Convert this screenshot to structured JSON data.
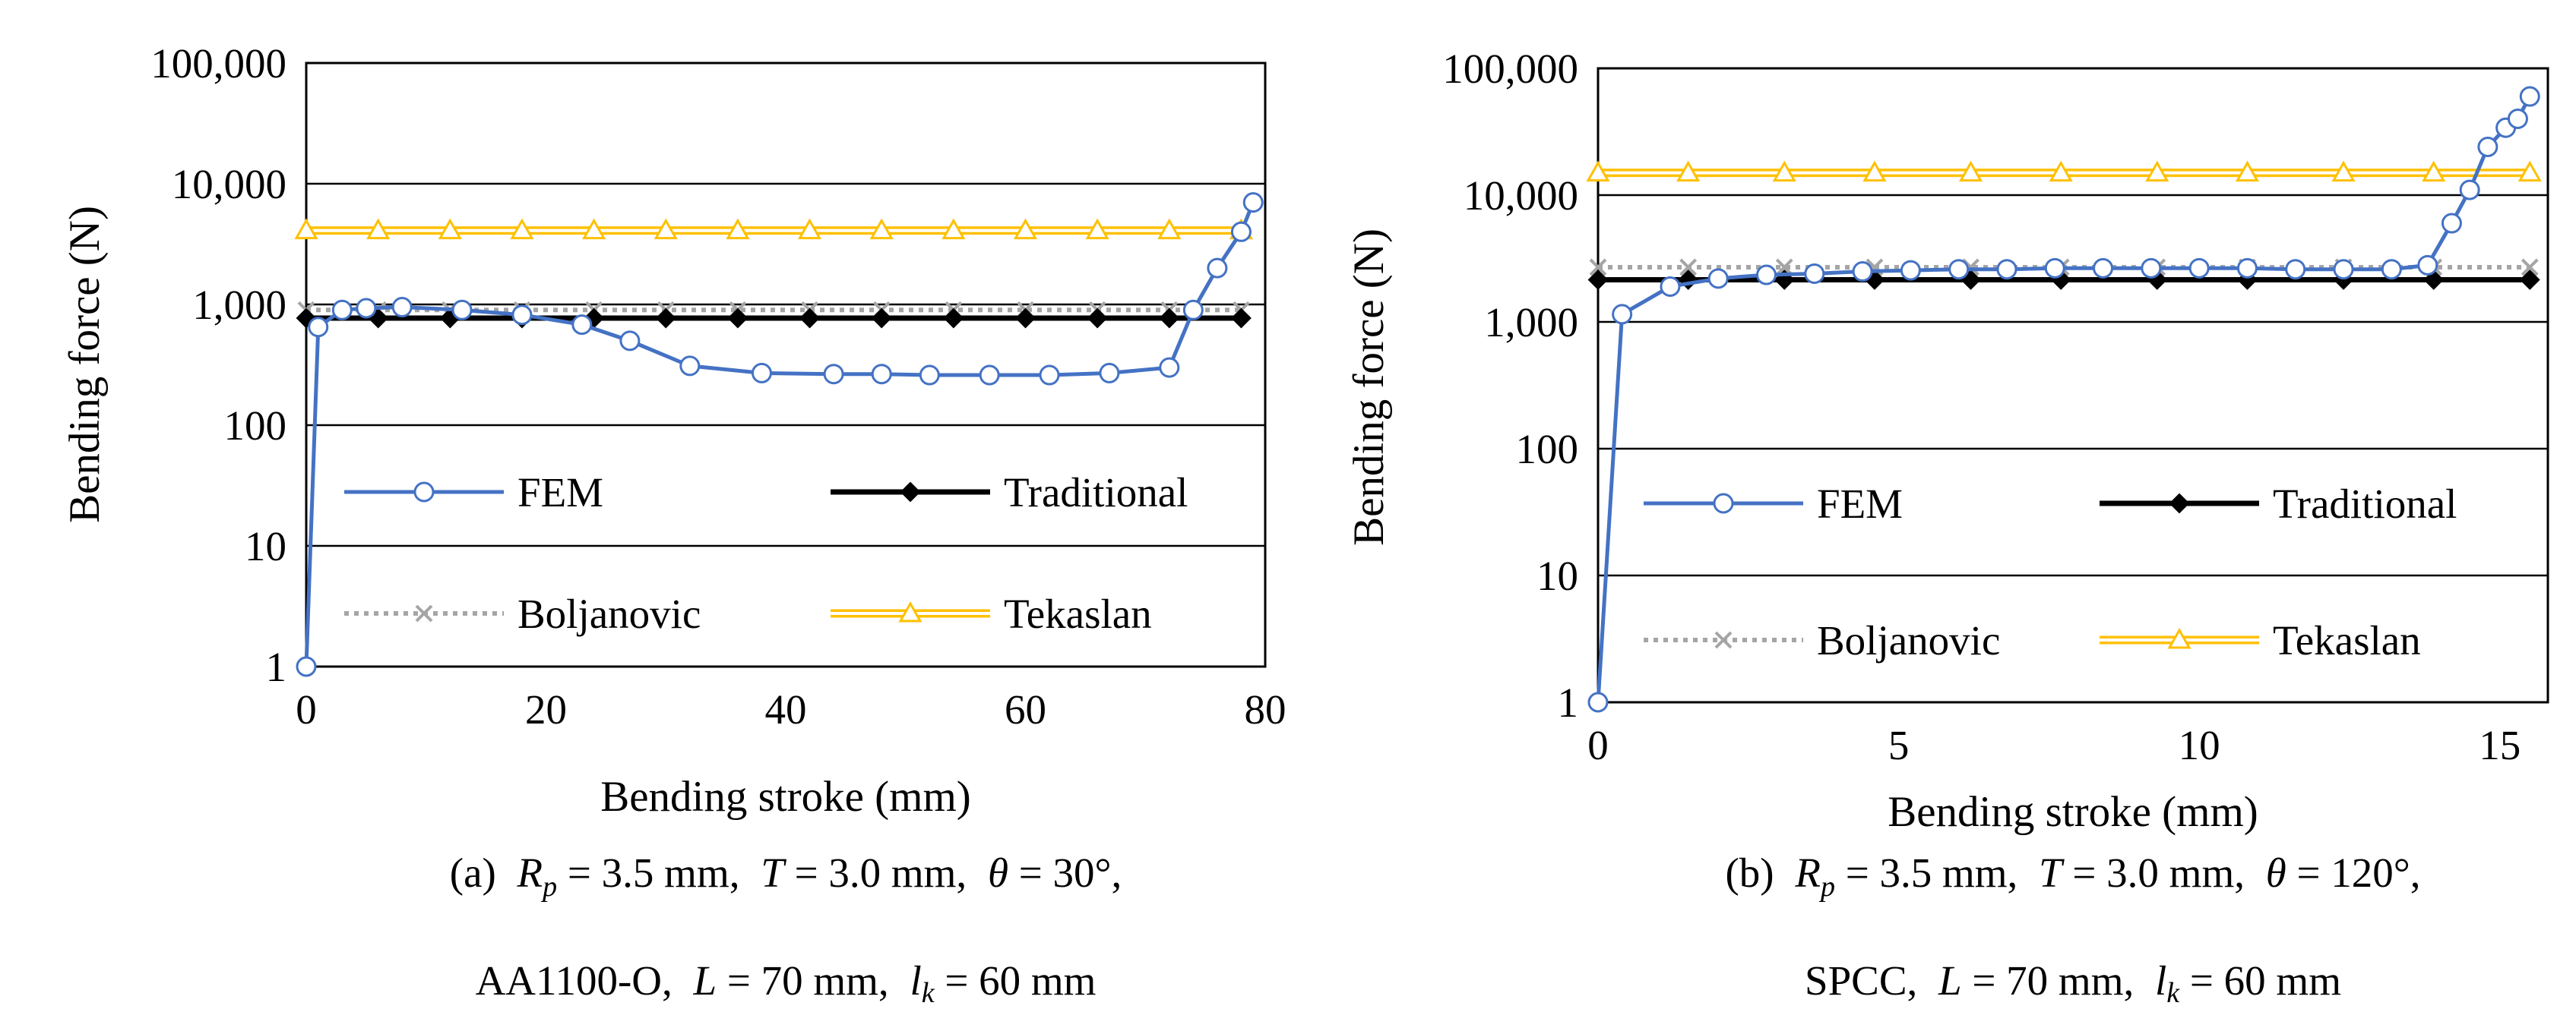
{
  "colors": {
    "fem": "#4472C4",
    "traditional": "#000000",
    "boljanovic": "#A5A5A5",
    "tekaslan": "#FFC000"
  },
  "chart_data": [
    {
      "type": "line",
      "panel": "a",
      "yscale": "log",
      "xlabel": "Bending stroke (mm)",
      "ylabel": "Bending force (N)",
      "xlim": [
        0,
        80
      ],
      "ylim": [
        1,
        100000
      ],
      "xticks": [
        0,
        20,
        40,
        60,
        80
      ],
      "xtick_labels": [
        "0",
        "20",
        "40",
        "60",
        "80"
      ],
      "yticks": [
        1,
        10,
        100,
        1000,
        10000,
        100000
      ],
      "ytick_labels": [
        "1",
        "10",
        "100",
        "1,000",
        "10,000",
        "100,000"
      ],
      "legend": [
        "FEM",
        "Traditional",
        "Boljanovic",
        "Tekaslan"
      ],
      "series": [
        {
          "name": "FEM",
          "x": [
            0,
            1,
            3,
            5,
            8,
            13,
            18,
            23,
            27,
            32,
            38,
            44,
            48,
            52,
            57,
            62,
            67,
            72,
            74,
            76,
            78,
            79
          ],
          "y": [
            1,
            650,
            900,
            930,
            950,
            900,
            820,
            680,
            500,
            310,
            270,
            265,
            265,
            260,
            260,
            260,
            270,
            300,
            900,
            2000,
            4000,
            7000
          ]
        },
        {
          "name": "Traditional",
          "x": [
            0,
            6,
            12,
            18,
            24,
            30,
            36,
            42,
            48,
            54,
            60,
            66,
            72,
            78
          ],
          "y": [
            770,
            770,
            770,
            770,
            770,
            770,
            770,
            770,
            770,
            770,
            770,
            770,
            770,
            770
          ]
        },
        {
          "name": "Boljanovic",
          "x": [
            0,
            6,
            12,
            18,
            24,
            30,
            36,
            42,
            48,
            54,
            60,
            66,
            72,
            78
          ],
          "y": [
            900,
            900,
            900,
            900,
            900,
            900,
            900,
            900,
            900,
            900,
            900,
            900,
            900,
            900
          ]
        },
        {
          "name": "Tekaslan",
          "x": [
            0,
            6,
            12,
            18,
            24,
            30,
            36,
            42,
            48,
            54,
            60,
            66,
            72,
            78
          ],
          "y": [
            4100,
            4100,
            4100,
            4100,
            4100,
            4100,
            4100,
            4100,
            4100,
            4100,
            4100,
            4100,
            4100,
            4100
          ]
        }
      ],
      "caption_line1": {
        "prefix": "(a)",
        "rp_value": " = 3.5 mm,",
        "t_value": " = 3.0 mm,",
        "theta_value": " = 30°,"
      },
      "caption_line2": {
        "prefix": "AA1100-O,",
        "l_value": " = 70 mm,",
        "lk_value": " = 60 mm"
      }
    },
    {
      "type": "line",
      "panel": "b",
      "yscale": "log",
      "xlabel": "Bending stroke (mm)",
      "ylabel": "Bending force (N)",
      "xlim": [
        0,
        15.8
      ],
      "ylim": [
        1,
        100000
      ],
      "xticks": [
        0,
        5,
        10,
        15
      ],
      "xtick_labels": [
        "0",
        "5",
        "10",
        "15"
      ],
      "yticks": [
        1,
        10,
        100,
        1000,
        10000,
        100000
      ],
      "ytick_labels": [
        "1",
        "10",
        "100",
        "1,000",
        "10,000",
        "100,000"
      ],
      "legend": [
        "FEM",
        "Traditional",
        "Boljanovic",
        "Tekaslan"
      ],
      "series": [
        {
          "name": "FEM",
          "x": [
            0,
            0.4,
            1.2,
            2,
            2.8,
            3.6,
            4.4,
            5.2,
            6,
            6.8,
            7.6,
            8.4,
            9.2,
            10,
            10.8,
            11.6,
            12.4,
            13.2,
            13.8,
            14.2,
            14.5,
            14.8,
            15.1,
            15.3,
            15.5
          ],
          "y": [
            1,
            1150,
            1900,
            2200,
            2350,
            2400,
            2500,
            2550,
            2600,
            2600,
            2650,
            2650,
            2650,
            2650,
            2650,
            2600,
            2600,
            2600,
            2800,
            6000,
            11000,
            24000,
            34000,
            40000,
            60000
          ]
        },
        {
          "name": "Traditional",
          "x": [
            0,
            1.5,
            3.1,
            4.6,
            6.2,
            7.7,
            9.3,
            10.8,
            12.4,
            13.9,
            15.5
          ],
          "y": [
            2150,
            2150,
            2150,
            2150,
            2150,
            2150,
            2150,
            2150,
            2150,
            2150,
            2150
          ]
        },
        {
          "name": "Boljanovic",
          "x": [
            0,
            1.5,
            3.1,
            4.6,
            6.2,
            7.7,
            9.3,
            10.8,
            12.4,
            13.9,
            15.5
          ],
          "y": [
            2700,
            2700,
            2700,
            2700,
            2700,
            2700,
            2700,
            2700,
            2700,
            2700,
            2700
          ]
        },
        {
          "name": "Tekaslan",
          "x": [
            0,
            1.5,
            3.1,
            4.6,
            6.2,
            7.7,
            9.3,
            10.8,
            12.4,
            13.9,
            15.5
          ],
          "y": [
            15000,
            15000,
            15000,
            15000,
            15000,
            15000,
            15000,
            15000,
            15000,
            15000,
            15000
          ]
        }
      ],
      "caption_line1": {
        "prefix": "(b)",
        "rp_value": " = 3.5 mm,",
        "t_value": " = 3.0 mm,",
        "theta_value": " = 120°,"
      },
      "caption_line2": {
        "prefix": "SPCC,",
        "l_value": " = 70 mm,",
        "lk_value": " = 60 mm"
      }
    }
  ]
}
